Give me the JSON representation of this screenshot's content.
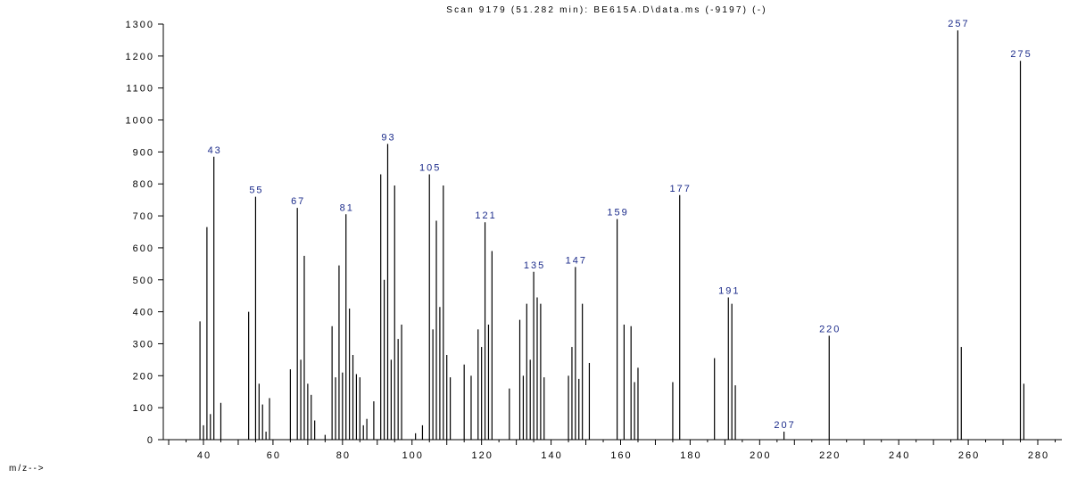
{
  "chart_data": {
    "type": "bar",
    "title": "Scan 9179 (51.282 min): BE615A.D\\data.ms (-9197) (-)",
    "xlabel": "m/z-->",
    "ylabel": "",
    "xlim": [
      27,
      285
    ],
    "ylim": [
      0,
      1300
    ],
    "x_ticks": [
      40,
      60,
      80,
      100,
      120,
      140,
      160,
      180,
      200,
      220,
      240,
      260,
      280
    ],
    "y_ticks": [
      0,
      100,
      200,
      300,
      400,
      500,
      600,
      700,
      800,
      900,
      1000,
      1100,
      1200,
      1300
    ],
    "colors": {
      "line": "#000000",
      "label": "#1a2a8a"
    },
    "x": [
      39,
      40,
      41,
      42,
      43,
      45,
      53,
      55,
      56,
      57,
      58,
      59,
      65,
      67,
      68,
      69,
      70,
      71,
      72,
      75,
      77,
      78,
      79,
      80,
      81,
      82,
      83,
      84,
      85,
      86,
      87,
      89,
      91,
      92,
      93,
      94,
      95,
      96,
      97,
      101,
      103,
      105,
      106,
      107,
      108,
      109,
      110,
      111,
      115,
      117,
      119,
      120,
      121,
      122,
      123,
      128,
      131,
      132,
      133,
      134,
      135,
      136,
      137,
      138,
      145,
      146,
      147,
      148,
      149,
      151,
      159,
      161,
      163,
      164,
      165,
      175,
      177,
      187,
      191,
      192,
      193,
      207,
      220,
      257,
      258,
      275,
      276
    ],
    "values": [
      370,
      45,
      665,
      80,
      885,
      115,
      400,
      760,
      175,
      110,
      25,
      130,
      220,
      725,
      250,
      575,
      175,
      140,
      60,
      15,
      355,
      195,
      545,
      210,
      705,
      410,
      265,
      205,
      195,
      45,
      65,
      120,
      830,
      500,
      925,
      250,
      795,
      315,
      360,
      20,
      45,
      830,
      345,
      685,
      415,
      795,
      265,
      195,
      235,
      200,
      345,
      290,
      680,
      360,
      590,
      160,
      375,
      200,
      425,
      250,
      525,
      445,
      425,
      195,
      200,
      290,
      540,
      190,
      425,
      240,
      690,
      360,
      355,
      180,
      225,
      180,
      765,
      255,
      445,
      425,
      170,
      25,
      325,
      1280,
      290,
      1185,
      175
    ],
    "peak_labels": [
      {
        "x": 43,
        "text": "43"
      },
      {
        "x": 55,
        "text": "55"
      },
      {
        "x": 67,
        "text": "67"
      },
      {
        "x": 81,
        "text": "81"
      },
      {
        "x": 93,
        "text": "93"
      },
      {
        "x": 105,
        "text": "105"
      },
      {
        "x": 121,
        "text": "121"
      },
      {
        "x": 135,
        "text": "135"
      },
      {
        "x": 147,
        "text": "147"
      },
      {
        "x": 159,
        "text": "159"
      },
      {
        "x": 177,
        "text": "177"
      },
      {
        "x": 191,
        "text": "191"
      },
      {
        "x": 207,
        "text": "207"
      },
      {
        "x": 220,
        "text": "220"
      },
      {
        "x": 257,
        "text": "257"
      },
      {
        "x": 275,
        "text": "275"
      }
    ]
  }
}
